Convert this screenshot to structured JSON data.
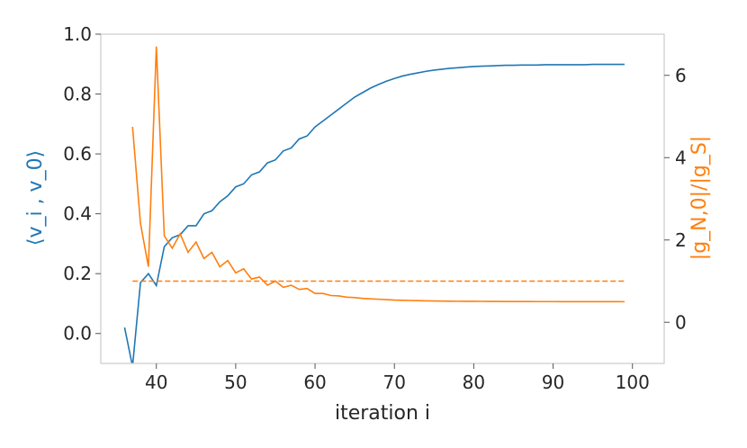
{
  "chart_data": {
    "type": "line",
    "xlabel": "iteration i",
    "ylabel_left": "⟨v_i , v_0⟩",
    "ylabel_right": "|g_N,0|/|g_S|",
    "xlim": [
      33,
      104
    ],
    "ylim_left": [
      -0.1,
      1.0
    ],
    "ylim_right": [
      -1.0,
      7.0
    ],
    "xticks": [
      "40",
      "50",
      "60",
      "70",
      "80",
      "90",
      "100"
    ],
    "yticks_left": [
      "0.0",
      "0.2",
      "0.4",
      "0.6",
      "0.8",
      "1.0"
    ],
    "yticks_right": [
      "0",
      "2",
      "4",
      "6"
    ],
    "grid": false,
    "colors": {
      "left": "#1f77b4",
      "right": "#ff7f0e"
    },
    "series": [
      {
        "axis": "left",
        "style": "solid",
        "x": [
          36,
          37,
          38,
          39,
          40,
          41,
          42,
          43,
          44,
          45,
          46,
          47,
          48,
          49,
          50,
          51,
          52,
          53,
          54,
          55,
          56,
          57,
          58,
          59,
          60,
          61,
          62,
          63,
          64,
          65,
          66,
          67,
          68,
          69,
          70,
          71,
          72,
          73,
          74,
          75,
          76,
          77,
          78,
          79,
          80,
          81,
          82,
          83,
          84,
          85,
          86,
          87,
          88,
          89,
          90,
          91,
          92,
          93,
          94,
          95,
          96,
          97,
          98,
          99
        ],
        "values": [
          0.02,
          -0.11,
          0.17,
          0.2,
          0.16,
          0.29,
          0.32,
          0.33,
          0.36,
          0.36,
          0.4,
          0.41,
          0.44,
          0.46,
          0.49,
          0.5,
          0.53,
          0.54,
          0.57,
          0.58,
          0.61,
          0.62,
          0.65,
          0.66,
          0.69,
          0.71,
          0.73,
          0.75,
          0.77,
          0.79,
          0.805,
          0.82,
          0.832,
          0.843,
          0.852,
          0.86,
          0.866,
          0.871,
          0.876,
          0.88,
          0.883,
          0.886,
          0.888,
          0.89,
          0.892,
          0.893,
          0.894,
          0.895,
          0.896,
          0.896,
          0.897,
          0.897,
          0.897,
          0.898,
          0.898,
          0.898,
          0.898,
          0.898,
          0.898,
          0.899,
          0.899,
          0.899,
          0.899,
          0.899
        ]
      },
      {
        "axis": "right",
        "style": "solid",
        "x": [
          37,
          38,
          39,
          40,
          41,
          42,
          43,
          44,
          45,
          46,
          47,
          48,
          49,
          50,
          51,
          52,
          53,
          54,
          55,
          56,
          57,
          58,
          59,
          60,
          61,
          62,
          63,
          64,
          65,
          66,
          67,
          68,
          69,
          70,
          71,
          72,
          73,
          74,
          75,
          76,
          77,
          78,
          79,
          80,
          81,
          82,
          83,
          84,
          85,
          86,
          87,
          88,
          89,
          90,
          91,
          92,
          93,
          94,
          95,
          96,
          97,
          98,
          99
        ],
        "values": [
          4.75,
          2.4,
          1.35,
          6.7,
          2.1,
          1.8,
          2.15,
          1.7,
          1.95,
          1.55,
          1.7,
          1.35,
          1.5,
          1.2,
          1.3,
          1.05,
          1.1,
          0.9,
          1.0,
          0.85,
          0.9,
          0.8,
          0.82,
          0.7,
          0.7,
          0.65,
          0.64,
          0.61,
          0.6,
          0.58,
          0.57,
          0.56,
          0.55,
          0.54,
          0.535,
          0.53,
          0.525,
          0.52,
          0.518,
          0.515,
          0.513,
          0.511,
          0.51,
          0.509,
          0.508,
          0.507,
          0.506,
          0.505,
          0.505,
          0.504,
          0.504,
          0.503,
          0.503,
          0.503,
          0.502,
          0.502,
          0.502,
          0.502,
          0.501,
          0.501,
          0.501,
          0.501,
          0.5
        ]
      },
      {
        "axis": "right",
        "style": "dashed",
        "x": [
          37,
          99
        ],
        "values": [
          1.0,
          1.0
        ]
      }
    ]
  }
}
